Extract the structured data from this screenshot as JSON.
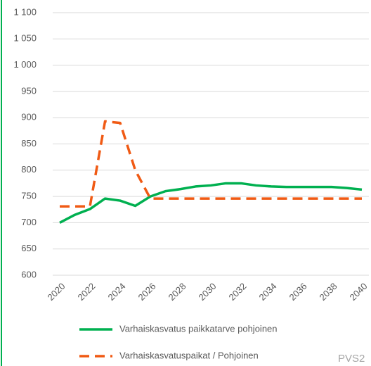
{
  "chart_data": {
    "type": "line",
    "x": [
      2020,
      2021,
      2022,
      2023,
      2024,
      2025,
      2026,
      2027,
      2028,
      2029,
      2030,
      2031,
      2032,
      2033,
      2034,
      2035,
      2036,
      2037,
      2038,
      2039,
      2040
    ],
    "series": [
      {
        "name": "Varhaiskasvatus paikkatarve pohjoinen",
        "color": "#00b050",
        "dash": false,
        "values": [
          700,
          715,
          726,
          746,
          742,
          732,
          750,
          760,
          764,
          769,
          771,
          775,
          775,
          771,
          769,
          768,
          768,
          768,
          768,
          766,
          763
        ]
      },
      {
        "name": "Varhaiskasvatuspaikat / Pohjoinen",
        "color": "#f05a14",
        "dash": true,
        "values": [
          731,
          731,
          731,
          893,
          890,
          800,
          746,
          746,
          746,
          746,
          746,
          746,
          746,
          746,
          746,
          746,
          746,
          746,
          746,
          746,
          746
        ]
      }
    ],
    "xlim": [
      2020,
      2040
    ],
    "xticks": [
      2020,
      2022,
      2024,
      2026,
      2028,
      2030,
      2032,
      2034,
      2036,
      2038,
      2040
    ],
    "ylim": [
      600,
      1100
    ],
    "yticks": [
      600,
      650,
      700,
      750,
      800,
      850,
      900,
      950,
      {
        "value": 1000,
        "label": "1 000"
      },
      {
        "value": 1050,
        "label": "1 050"
      },
      {
        "value": 1100,
        "label": "1 100"
      }
    ],
    "grid": true,
    "legend": "bottom",
    "annotation": "PVS2"
  }
}
